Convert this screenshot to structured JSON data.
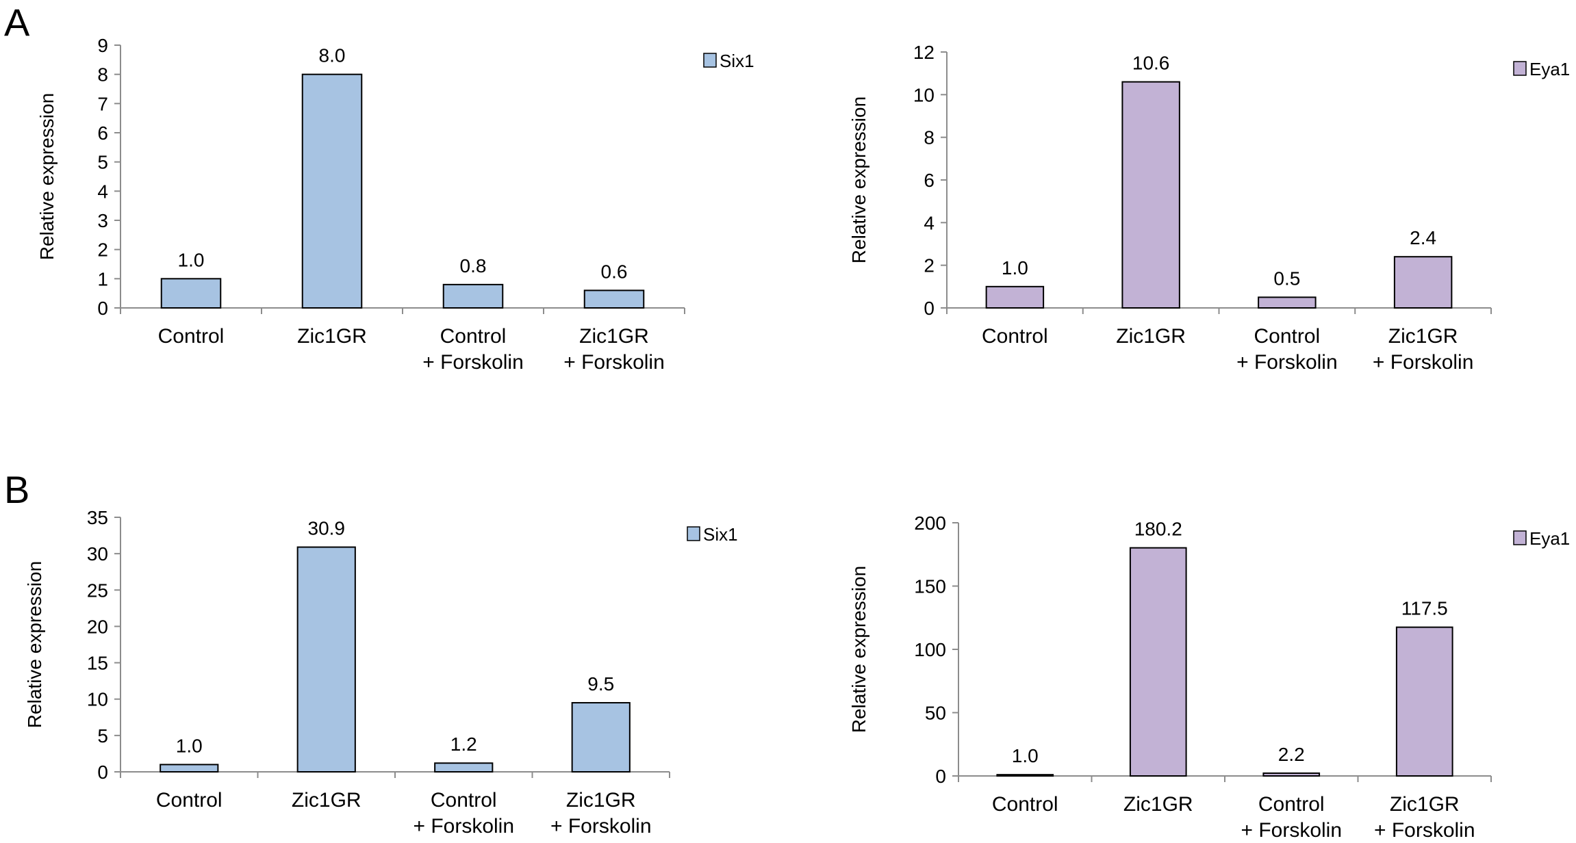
{
  "panels": [
    {
      "letter": "A"
    },
    {
      "letter": "B"
    }
  ],
  "chart_data": [
    {
      "panel": "A",
      "type": "bar",
      "categories": [
        [
          "Control"
        ],
        [
          "Zic1GR"
        ],
        [
          "Control",
          "+ Forskolin"
        ],
        [
          "Zic1GR",
          "+ Forskolin"
        ]
      ],
      "series": [
        {
          "name": "Six1",
          "values": [
            1.0,
            8.0,
            0.8,
            0.6
          ]
        }
      ],
      "data_labels": [
        "1.0",
        "8.0",
        "0.8",
        "0.6"
      ],
      "ylabel": "Relative expression",
      "ylim": [
        0,
        9
      ],
      "yticks": [
        0,
        1,
        2,
        3,
        4,
        5,
        6,
        7,
        8,
        9
      ],
      "color": "#a7c3e2",
      "grid": false,
      "legend": "right"
    },
    {
      "panel": "A",
      "type": "bar",
      "categories": [
        [
          "Control"
        ],
        [
          "Zic1GR"
        ],
        [
          "Control",
          "+ Forskolin"
        ],
        [
          "Zic1GR",
          "+ Forskolin"
        ]
      ],
      "series": [
        {
          "name": "Eya1",
          "values": [
            1.0,
            10.6,
            0.5,
            2.4
          ]
        }
      ],
      "data_labels": [
        "1.0",
        "10.6",
        "0.5",
        "2.4"
      ],
      "ylabel": "Relative expression",
      "ylim": [
        0,
        12
      ],
      "yticks": [
        0,
        2,
        4,
        6,
        8,
        10,
        12
      ],
      "color": "#c2b2d5",
      "grid": false,
      "legend": "right"
    },
    {
      "panel": "B",
      "type": "bar",
      "categories": [
        [
          "Control"
        ],
        [
          "Zic1GR"
        ],
        [
          "Control",
          "+ Forskolin"
        ],
        [
          "Zic1GR",
          "+ Forskolin"
        ]
      ],
      "series": [
        {
          "name": "Six1",
          "values": [
            1.0,
            30.9,
            1.2,
            9.5
          ]
        }
      ],
      "data_labels": [
        "1.0",
        "30.9",
        "1.2",
        "9.5"
      ],
      "ylabel": "Relative expression",
      "ylim": [
        0,
        35
      ],
      "yticks": [
        0,
        5,
        10,
        15,
        20,
        25,
        30,
        35
      ],
      "color": "#a7c3e2",
      "grid": false,
      "legend": "right"
    },
    {
      "panel": "B",
      "type": "bar",
      "categories": [
        [
          "Control"
        ],
        [
          "Zic1GR"
        ],
        [
          "Control",
          "+ Forskolin"
        ],
        [
          "Zic1GR",
          "+ Forskolin"
        ]
      ],
      "series": [
        {
          "name": "Eya1",
          "values": [
            1.0,
            180.2,
            2.2,
            117.5
          ]
        }
      ],
      "data_labels": [
        "1.0",
        "180.2",
        "2.2",
        "117.5"
      ],
      "ylabel": "Relative expression",
      "ylim": [
        0,
        200
      ],
      "yticks": [
        0,
        50,
        100,
        150,
        200
      ],
      "color": "#c2b2d5",
      "grid": false,
      "legend": "right"
    }
  ]
}
